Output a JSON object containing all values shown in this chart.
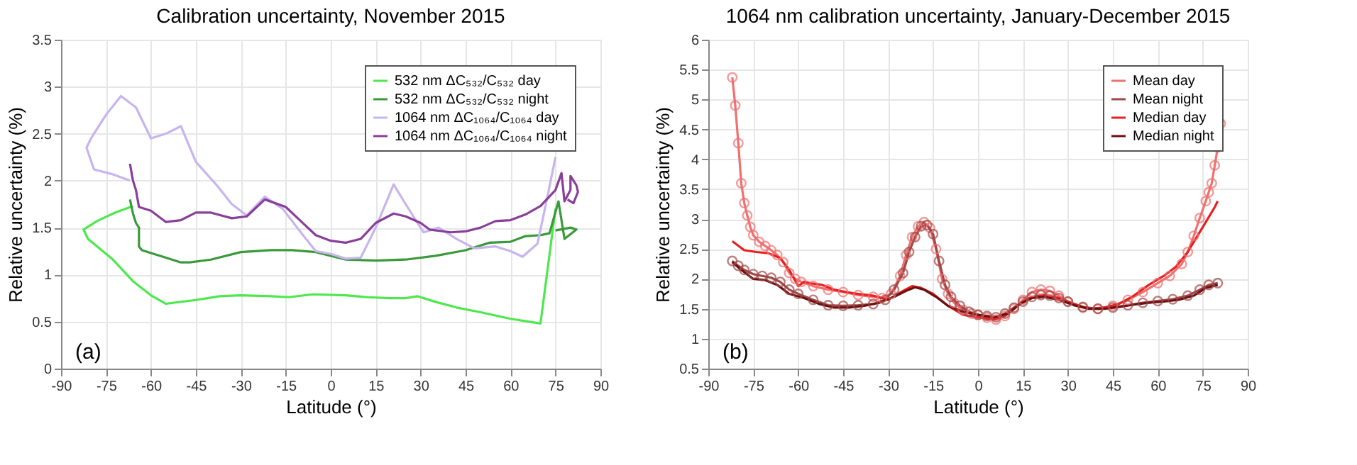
{
  "chart_data": [
    {
      "type": "line",
      "title": "Calibration uncertainty, November 2015",
      "xlabel": "Latitude (°)",
      "ylabel": "Relative uncertainty (%)",
      "xlim": [
        -90,
        90
      ],
      "xticks": [
        -90,
        -75,
        -60,
        -45,
        -30,
        -15,
        0,
        15,
        30,
        45,
        60,
        75,
        90
      ],
      "ylim": [
        0,
        3.5
      ],
      "yticks": [
        0,
        0.5,
        1,
        1.5,
        2,
        2.5,
        3,
        3.5
      ],
      "grid": true,
      "legend": "top right",
      "line_style": "solid",
      "annotations": [
        "(a)"
      ],
      "series": [
        {
          "name": "532 nm ΔC₅₃₂/C₅₃₂ day",
          "color": "#4de84d",
          "marker": "none",
          "x": [
            -66,
            -72,
            -78,
            -82.5,
            -81,
            -73,
            -66,
            -60,
            -55,
            -45,
            -37,
            -30,
            -20,
            -14,
            -6,
            5,
            12,
            20,
            25,
            29,
            35,
            42,
            50,
            60,
            70,
            75
          ],
          "values": [
            1.73,
            1.66,
            1.57,
            1.48,
            1.38,
            1.17,
            0.93,
            0.78,
            0.69,
            0.73,
            0.77,
            0.78,
            0.77,
            0.76,
            0.79,
            0.78,
            0.76,
            0.75,
            0.75,
            0.77,
            0.71,
            0.65,
            0.6,
            0.53,
            0.48,
            1.7
          ]
        },
        {
          "name": "532 nm ΔC₅₃₂/C₅₃₂ night",
          "color": "#3a9a3a",
          "marker": "none",
          "x": [
            -67,
            -66,
            -65,
            -64,
            -64,
            -63,
            -55,
            -50,
            -47,
            -40,
            -30,
            -20,
            -13,
            -5,
            0,
            5,
            15,
            25,
            35,
            45,
            53,
            60,
            65,
            70,
            73,
            76,
            78,
            82,
            80,
            75
          ],
          "values": [
            1.8,
            1.65,
            1.55,
            1.5,
            1.3,
            1.26,
            1.18,
            1.13,
            1.13,
            1.16,
            1.24,
            1.26,
            1.26,
            1.24,
            1.2,
            1.16,
            1.15,
            1.16,
            1.2,
            1.26,
            1.34,
            1.35,
            1.41,
            1.42,
            1.44,
            1.78,
            1.38,
            1.48,
            1.5,
            1.47
          ]
        },
        {
          "name": "1064 nm ΔC₁₀₆₄/C₁₀₆₄ day",
          "color": "#c8b4ee",
          "marker": "none",
          "x": [
            -67,
            -73,
            -79,
            -81.5,
            -80,
            -75,
            -70,
            -65,
            -60,
            -55,
            -50,
            -45,
            -38,
            -33,
            -28,
            -22,
            -16,
            -10,
            -5,
            0,
            5,
            10,
            15,
            21,
            25,
            31,
            36,
            42,
            48,
            55,
            60,
            64,
            69,
            72,
            75
          ],
          "values": [
            2.0,
            2.07,
            2.12,
            2.35,
            2.45,
            2.7,
            2.9,
            2.78,
            2.45,
            2.5,
            2.58,
            2.2,
            1.95,
            1.75,
            1.63,
            1.83,
            1.7,
            1.45,
            1.25,
            1.22,
            1.17,
            1.18,
            1.5,
            1.96,
            1.75,
            1.45,
            1.5,
            1.38,
            1.28,
            1.3,
            1.25,
            1.19,
            1.33,
            1.78,
            2.25
          ]
        },
        {
          "name": "1064 nm ΔC₁₀₆₄/C₁₀₆₄ night",
          "color": "#8a3e9a",
          "marker": "none",
          "x": [
            -67,
            -66,
            -65,
            -64,
            -60,
            -55,
            -50,
            -45,
            -40,
            -33,
            -28,
            -22,
            -15,
            -10,
            -5,
            0,
            5,
            10,
            15,
            21,
            25,
            30,
            33,
            40,
            45,
            50,
            55,
            60,
            65,
            70,
            75,
            77,
            78,
            80,
            80,
            82,
            82.5,
            81,
            79
          ],
          "values": [
            2.18,
            2.0,
            1.9,
            1.72,
            1.68,
            1.56,
            1.58,
            1.66,
            1.66,
            1.6,
            1.62,
            1.8,
            1.72,
            1.57,
            1.42,
            1.36,
            1.34,
            1.38,
            1.55,
            1.65,
            1.62,
            1.55,
            1.48,
            1.45,
            1.46,
            1.5,
            1.57,
            1.58,
            1.64,
            1.73,
            1.9,
            2.08,
            1.78,
            1.9,
            2.05,
            1.95,
            1.88,
            1.76,
            1.8
          ]
        }
      ]
    },
    {
      "type": "line",
      "title": "1064 nm calibration uncertainty, January-December 2015",
      "xlabel": "Latitude (°)",
      "ylabel": "Relative uncertainty (%)",
      "xlim": [
        -90,
        90
      ],
      "xticks": [
        -90,
        -75,
        -60,
        -45,
        -30,
        -15,
        0,
        15,
        30,
        45,
        60,
        75,
        90
      ],
      "ylim": [
        0.5,
        6
      ],
      "yticks": [
        0.5,
        1,
        1.5,
        2,
        2.5,
        3,
        3.5,
        4,
        4.5,
        5,
        5.5,
        6
      ],
      "grid": true,
      "legend": "top right",
      "line_style": "solid",
      "annotations": [
        "(b)"
      ],
      "series": [
        {
          "name": "Mean day",
          "color": "#f07070",
          "marker": "circle",
          "x": [
            -82,
            -81,
            -80,
            -79,
            -78,
            -77,
            -76,
            -75,
            -73,
            -71,
            -69,
            -67,
            -65,
            -63,
            -61,
            -59,
            -55,
            -50,
            -45,
            -40,
            -35,
            -32,
            -29,
            -26,
            -24,
            -22,
            -20,
            -18,
            -16,
            -14,
            -12,
            -10,
            -8,
            -5,
            -2,
            0,
            3,
            6,
            9,
            12,
            15,
            18,
            21,
            24,
            27,
            30,
            35,
            40,
            45,
            50,
            55,
            60,
            64,
            68,
            70,
            72,
            74,
            76,
            77,
            78,
            79,
            80,
            81
          ],
          "values": [
            5.37,
            4.9,
            4.27,
            3.6,
            3.27,
            3.06,
            2.87,
            2.73,
            2.62,
            2.55,
            2.48,
            2.4,
            2.28,
            2.1,
            2.0,
            1.95,
            1.88,
            1.82,
            1.78,
            1.73,
            1.7,
            1.68,
            1.75,
            2.05,
            2.4,
            2.7,
            2.88,
            2.95,
            2.85,
            2.5,
            2.0,
            1.75,
            1.6,
            1.48,
            1.42,
            1.4,
            1.35,
            1.32,
            1.38,
            1.5,
            1.65,
            1.78,
            1.82,
            1.8,
            1.72,
            1.62,
            1.52,
            1.5,
            1.55,
            1.65,
            1.78,
            1.93,
            2.05,
            2.25,
            2.45,
            2.72,
            3.02,
            3.3,
            3.45,
            3.6,
            3.9,
            4.2,
            4.6
          ]
        },
        {
          "name": "Mean night",
          "color": "#a04848",
          "marker": "circle",
          "x": [
            -82,
            -80,
            -78,
            -75,
            -72,
            -69,
            -66,
            -63,
            -60,
            -55,
            -50,
            -45,
            -40,
            -35,
            -31,
            -28,
            -25,
            -23,
            -21,
            -19,
            -17,
            -15,
            -13,
            -11,
            -9,
            -6,
            -3,
            0,
            3,
            6,
            9,
            12,
            15,
            18,
            21,
            24,
            27,
            30,
            35,
            40,
            45,
            50,
            55,
            60,
            65,
            70,
            74,
            77,
            80
          ],
          "values": [
            2.3,
            2.22,
            2.15,
            2.08,
            2.05,
            2.02,
            1.95,
            1.82,
            1.75,
            1.65,
            1.56,
            1.55,
            1.56,
            1.58,
            1.65,
            1.82,
            2.1,
            2.45,
            2.7,
            2.88,
            2.9,
            2.75,
            2.3,
            1.9,
            1.7,
            1.55,
            1.45,
            1.4,
            1.38,
            1.36,
            1.42,
            1.52,
            1.62,
            1.7,
            1.73,
            1.72,
            1.68,
            1.62,
            1.53,
            1.5,
            1.52,
            1.56,
            1.6,
            1.63,
            1.66,
            1.72,
            1.82,
            1.9,
            1.93
          ]
        },
        {
          "name": "Median day",
          "color": "#e82020",
          "marker": "none",
          "x": [
            -82,
            -78,
            -74,
            -70,
            -66,
            -63,
            -60,
            -58,
            -55,
            -52,
            -48,
            -44,
            -40,
            -35,
            -30,
            -25,
            -22,
            -19,
            -15,
            -10,
            -5,
            0,
            5,
            9,
            13,
            18,
            22,
            27,
            32,
            37,
            42,
            47,
            52,
            57,
            62,
            66,
            70,
            73,
            76,
            79,
            80
          ],
          "values": [
            2.63,
            2.48,
            2.45,
            2.43,
            2.35,
            2.15,
            1.88,
            1.95,
            1.92,
            1.9,
            1.82,
            1.78,
            1.75,
            1.72,
            1.65,
            1.8,
            1.88,
            1.85,
            1.75,
            1.55,
            1.4,
            1.36,
            1.32,
            1.38,
            1.55,
            1.7,
            1.72,
            1.68,
            1.58,
            1.5,
            1.52,
            1.58,
            1.72,
            1.9,
            2.05,
            2.2,
            2.45,
            2.7,
            2.95,
            3.2,
            3.3
          ]
        },
        {
          "name": "Median night",
          "color": "#6a1010",
          "marker": "none",
          "x": [
            -82,
            -79,
            -75,
            -71,
            -67,
            -63,
            -58,
            -53,
            -48,
            -43,
            -38,
            -33,
            -28,
            -24,
            -21,
            -18,
            -14,
            -10,
            -5,
            0,
            5,
            10,
            14,
            18,
            22,
            27,
            32,
            37,
            42,
            47,
            52,
            57,
            62,
            67,
            72,
            76,
            80
          ],
          "values": [
            2.28,
            2.15,
            2.0,
            1.98,
            1.9,
            1.75,
            1.68,
            1.58,
            1.52,
            1.52,
            1.55,
            1.6,
            1.7,
            1.8,
            1.86,
            1.82,
            1.7,
            1.55,
            1.45,
            1.4,
            1.36,
            1.42,
            1.58,
            1.68,
            1.7,
            1.65,
            1.56,
            1.5,
            1.5,
            1.53,
            1.57,
            1.6,
            1.62,
            1.65,
            1.72,
            1.85,
            1.9
          ]
        }
      ]
    }
  ]
}
